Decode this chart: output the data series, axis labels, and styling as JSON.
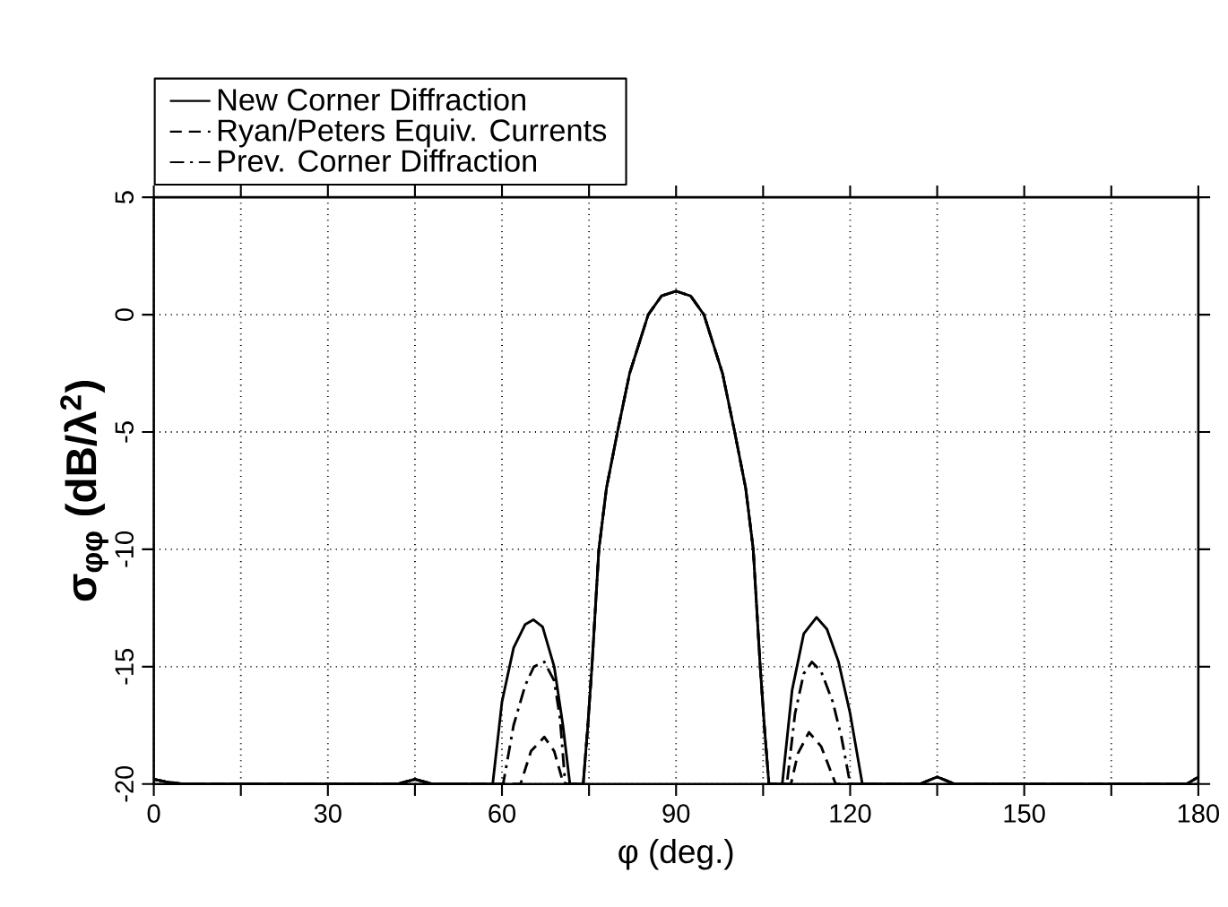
{
  "chart_data": {
    "type": "line",
    "xlabel": "φ (deg.)",
    "ylabel": "σ$_{φφ}$ (dB/λ$^{2}$)",
    "xlim": [
      0,
      180
    ],
    "ylim": [
      -20,
      5
    ],
    "xticks": [
      0,
      {
        "value": 15,
        "label": null
      },
      30,
      {
        "value": 45,
        "label": null
      },
      60,
      {
        "value": 75,
        "label": null
      },
      90,
      {
        "value": 105,
        "label": null
      },
      120,
      {
        "value": 135,
        "label": null
      },
      150,
      {
        "value": 165,
        "label": null
      },
      180
    ],
    "yticks": [
      -20,
      -15,
      -10,
      -5,
      0,
      5
    ],
    "grid": true,
    "legend": "top left",
    "marker": "none",
    "series": [
      {
        "name": "New Corner Diffraction",
        "color": "#000000",
        "line_style": "solid",
        "x": [
          0,
          2,
          5,
          42,
          45,
          48,
          58.4,
          60,
          62,
          64,
          65.4,
          67,
          69,
          70.5,
          71.7,
          74,
          74.8,
          75.5,
          76.7,
          78,
          79.9,
          82,
          85.2,
          87.5,
          90,
          92.5,
          94.8,
          98,
          100.1,
          102,
          103.3,
          104.5,
          105.2,
          106,
          108.3,
          110,
          112,
          114.2,
          116,
          118,
          120,
          122.1,
          132,
          135,
          138,
          178,
          180
        ],
        "values": [
          -19.8,
          -19.9,
          -20,
          -20,
          -19.8,
          -20,
          -20,
          -16.5,
          -14.2,
          -13.2,
          -13,
          -13.3,
          -15,
          -17.5,
          -20,
          -20,
          -17.5,
          -15,
          -10,
          -7.4,
          -5,
          -2.5,
          0,
          0.8,
          1,
          0.8,
          0,
          -2.5,
          -5,
          -7.4,
          -10,
          -15,
          -17.5,
          -20,
          -20,
          -16,
          -13.6,
          -12.9,
          -13.4,
          -14.8,
          -17,
          -20,
          -20,
          -19.7,
          -20,
          -20,
          -19.7
        ]
      },
      {
        "name": "Ryan/Peters Equiv. Currents",
        "color": "#000000",
        "line_style": "dashed",
        "x": [
          0,
          2,
          5,
          42,
          45,
          48,
          63.2,
          65,
          67.3,
          69,
          70.6,
          74,
          74.8,
          75.5,
          76.7,
          78,
          79.9,
          82,
          85.2,
          87.5,
          90,
          92.5,
          94.8,
          98,
          100.1,
          102,
          103.3,
          104.5,
          105.2,
          106,
          109.8,
          111,
          112.9,
          115,
          117.5,
          132,
          135,
          138,
          178,
          180
        ],
        "values": [
          -19.8,
          -19.9,
          -20,
          -20,
          -19.8,
          -20,
          -20,
          -18.6,
          -18,
          -18.6,
          -20,
          -20,
          -17.5,
          -15,
          -10,
          -7.4,
          -5,
          -2.5,
          0,
          0.8,
          1,
          0.8,
          0,
          -2.5,
          -5,
          -7.4,
          -10,
          -15,
          -17.5,
          -20,
          -20,
          -18.7,
          -17.8,
          -18.4,
          -20,
          -20,
          -19.7,
          -20,
          -20,
          -19.7
        ]
      },
      {
        "name": "Prev. Corner Diffraction",
        "color": "#000000",
        "line_style": "dashdot",
        "x": [
          0,
          2,
          5,
          42,
          45,
          48,
          60.2,
          62,
          64,
          65.5,
          67.3,
          69,
          70,
          70.9,
          74,
          74.8,
          75.5,
          76.7,
          78,
          79.9,
          82,
          85.2,
          87.5,
          90,
          92.5,
          94.8,
          98,
          100.1,
          102,
          103.3,
          104.5,
          105.2,
          106,
          109.1,
          110.5,
          112,
          113.4,
          115,
          117,
          118.5,
          120,
          132,
          135,
          138,
          178,
          180
        ],
        "values": [
          -19.8,
          -19.9,
          -20,
          -20,
          -19.8,
          -20,
          -20,
          -17.5,
          -15.8,
          -15,
          -14.8,
          -15.6,
          -17.2,
          -20,
          -20,
          -17.5,
          -15,
          -10,
          -7.4,
          -5,
          -2.5,
          0,
          0.8,
          1,
          0.8,
          0,
          -2.5,
          -5,
          -7.4,
          -10,
          -15,
          -17.5,
          -20,
          -20,
          -17,
          -15.3,
          -14.8,
          -15.2,
          -16.5,
          -18,
          -20,
          -20,
          -19.7,
          -20,
          -20,
          -19.7
        ]
      }
    ]
  }
}
